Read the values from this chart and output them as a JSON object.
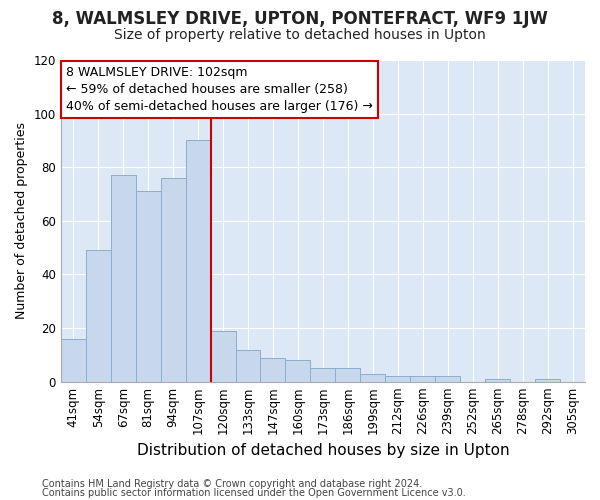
{
  "title1": "8, WALMSLEY DRIVE, UPTON, PONTEFRACT, WF9 1JW",
  "title2": "Size of property relative to detached houses in Upton",
  "xlabel": "Distribution of detached houses by size in Upton",
  "ylabel": "Number of detached properties",
  "footer1": "Contains HM Land Registry data © Crown copyright and database right 2024.",
  "footer2": "Contains public sector information licensed under the Open Government Licence v3.0.",
  "categories": [
    "41sqm",
    "54sqm",
    "67sqm",
    "81sqm",
    "94sqm",
    "107sqm",
    "120sqm",
    "133sqm",
    "147sqm",
    "160sqm",
    "173sqm",
    "186sqm",
    "199sqm",
    "212sqm",
    "226sqm",
    "239sqm",
    "252sqm",
    "265sqm",
    "278sqm",
    "292sqm",
    "305sqm"
  ],
  "values": [
    16,
    49,
    77,
    71,
    76,
    90,
    19,
    12,
    9,
    8,
    5,
    5,
    3,
    2,
    2,
    2,
    0,
    1,
    0,
    1,
    0
  ],
  "bar_color": "#c8d8ec",
  "bar_edge_color": "#8aaed0",
  "red_line_x": 5.5,
  "annotation_line1": "8 WALMSLEY DRIVE: 102sqm",
  "annotation_line2": "← 59% of detached houses are smaller (258)",
  "annotation_line3": "40% of semi-detached houses are larger (176) →",
  "annotation_box_color": "#ffffff",
  "annotation_box_edge_color": "#cc0000",
  "background_color": "#dce8f5",
  "fig_background_color": "#ffffff",
  "ylim": [
    0,
    120
  ],
  "yticks": [
    0,
    20,
    40,
    60,
    80,
    100,
    120
  ],
  "title1_fontsize": 12,
  "title2_fontsize": 10,
  "xlabel_fontsize": 11,
  "ylabel_fontsize": 9,
  "tick_fontsize": 8.5,
  "annotation_fontsize": 9,
  "footer_fontsize": 7
}
